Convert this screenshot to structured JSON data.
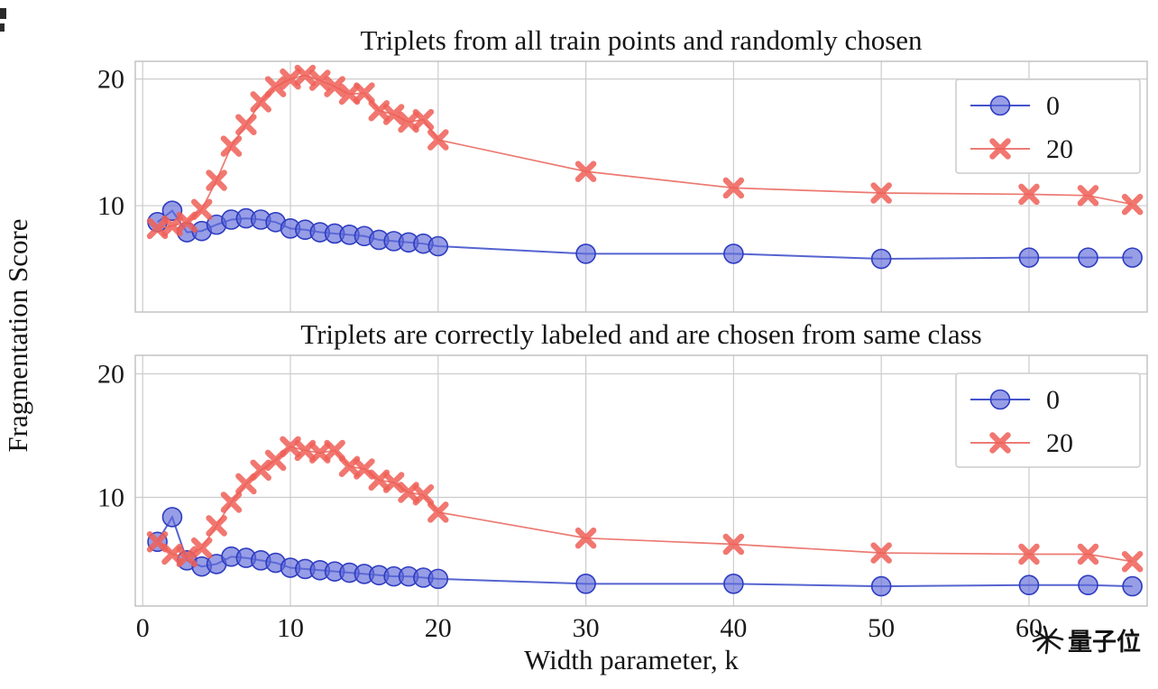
{
  "figure": {
    "xlabel": "Width parameter, k",
    "ylabel": "Fragmentation Score",
    "watermark": "量子位"
  },
  "chart_data": [
    {
      "type": "line",
      "title": "Triplets from all train points and randomly chosen",
      "xlabel": "Width parameter, k",
      "ylabel": "Fragmentation Score",
      "xlim": [
        -0.5,
        68
      ],
      "ylim": [
        1.6,
        21.4
      ],
      "xticks": [
        0,
        10,
        20,
        30,
        40,
        50,
        60
      ],
      "yticks": [
        10,
        20
      ],
      "grid": true,
      "legend_position": "upper right",
      "series": [
        {
          "name": "0",
          "marker": "circle",
          "color": "#4353cb",
          "marker_fill": "#5f6ad8",
          "marker_edge": "#2e3cc0",
          "points": [
            [
              1,
              8.7
            ],
            [
              2,
              9.6
            ],
            [
              3,
              7.9
            ],
            [
              4,
              8.0
            ],
            [
              5,
              8.5
            ],
            [
              6,
              8.9
            ],
            [
              7,
              9.0
            ],
            [
              8,
              8.9
            ],
            [
              9,
              8.7
            ],
            [
              10,
              8.2
            ],
            [
              11,
              8.1
            ],
            [
              12,
              7.9
            ],
            [
              13,
              7.8
            ],
            [
              14,
              7.7
            ],
            [
              15,
              7.6
            ],
            [
              16,
              7.3
            ],
            [
              17,
              7.2
            ],
            [
              18,
              7.1
            ],
            [
              19,
              7.0
            ],
            [
              20,
              6.8
            ],
            [
              30,
              6.2
            ],
            [
              40,
              6.2
            ],
            [
              50,
              5.8
            ],
            [
              60,
              5.9
            ],
            [
              64,
              5.9
            ],
            [
              67,
              5.9
            ]
          ]
        },
        {
          "name": "20",
          "marker": "x",
          "color": "#ea6a62",
          "marker_fill": "#ee5f57",
          "marker_edge": "#ee5f57",
          "points": [
            [
              1,
              8.2
            ],
            [
              2,
              8.4
            ],
            [
              3,
              8.7
            ],
            [
              4,
              9.7
            ],
            [
              5,
              12.0
            ],
            [
              6,
              14.7
            ],
            [
              7,
              16.4
            ],
            [
              8,
              18.2
            ],
            [
              9,
              19.4
            ],
            [
              10,
              20.0
            ],
            [
              11,
              20.3
            ],
            [
              12,
              19.9
            ],
            [
              13,
              19.4
            ],
            [
              14,
              18.8
            ],
            [
              15,
              18.9
            ],
            [
              16,
              17.5
            ],
            [
              17,
              17.2
            ],
            [
              18,
              16.6
            ],
            [
              19,
              16.8
            ],
            [
              20,
              15.2
            ],
            [
              30,
              12.7
            ],
            [
              40,
              11.4
            ],
            [
              50,
              11.0
            ],
            [
              60,
              10.9
            ],
            [
              64,
              10.8
            ],
            [
              67,
              10.1
            ]
          ]
        }
      ]
    },
    {
      "type": "line",
      "title": "Triplets are correctly labeled and are chosen from same class",
      "xlabel": "Width parameter, k",
      "ylabel": "Fragmentation Score",
      "xlim": [
        -0.5,
        68
      ],
      "ylim": [
        1.2,
        21.5
      ],
      "xticks": [
        0,
        10,
        20,
        30,
        40,
        50,
        60
      ],
      "yticks": [
        10,
        20
      ],
      "grid": true,
      "legend_position": "upper right",
      "series": [
        {
          "name": "0",
          "marker": "circle",
          "color": "#4353cb",
          "marker_fill": "#5f6ad8",
          "marker_edge": "#2e3cc0",
          "points": [
            [
              1,
              6.4
            ],
            [
              2,
              8.4
            ],
            [
              3,
              4.9
            ],
            [
              4,
              4.4
            ],
            [
              5,
              4.6
            ],
            [
              6,
              5.2
            ],
            [
              7,
              5.1
            ],
            [
              8,
              4.9
            ],
            [
              9,
              4.7
            ],
            [
              10,
              4.3
            ],
            [
              11,
              4.2
            ],
            [
              12,
              4.1
            ],
            [
              13,
              4.0
            ],
            [
              14,
              3.9
            ],
            [
              15,
              3.8
            ],
            [
              16,
              3.7
            ],
            [
              17,
              3.6
            ],
            [
              18,
              3.6
            ],
            [
              19,
              3.5
            ],
            [
              20,
              3.4
            ],
            [
              30,
              3.0
            ],
            [
              40,
              3.0
            ],
            [
              50,
              2.8
            ],
            [
              60,
              2.9
            ],
            [
              64,
              2.9
            ],
            [
              67,
              2.8
            ]
          ]
        },
        {
          "name": "20",
          "marker": "x",
          "color": "#ea6a62",
          "marker_fill": "#ee5f57",
          "marker_edge": "#ee5f57",
          "points": [
            [
              1,
              6.4
            ],
            [
              2,
              5.4
            ],
            [
              3,
              5.2
            ],
            [
              4,
              5.9
            ],
            [
              5,
              7.7
            ],
            [
              6,
              9.6
            ],
            [
              7,
              11.1
            ],
            [
              8,
              12.2
            ],
            [
              9,
              13.0
            ],
            [
              10,
              14.1
            ],
            [
              11,
              13.8
            ],
            [
              12,
              13.6
            ],
            [
              13,
              13.8
            ],
            [
              14,
              12.5
            ],
            [
              15,
              12.3
            ],
            [
              16,
              11.4
            ],
            [
              17,
              11.2
            ],
            [
              18,
              10.4
            ],
            [
              19,
              10.2
            ],
            [
              20,
              8.8
            ],
            [
              30,
              6.7
            ],
            [
              40,
              6.2
            ],
            [
              50,
              5.5
            ],
            [
              60,
              5.4
            ],
            [
              64,
              5.4
            ],
            [
              67,
              4.8
            ]
          ]
        }
      ]
    }
  ]
}
